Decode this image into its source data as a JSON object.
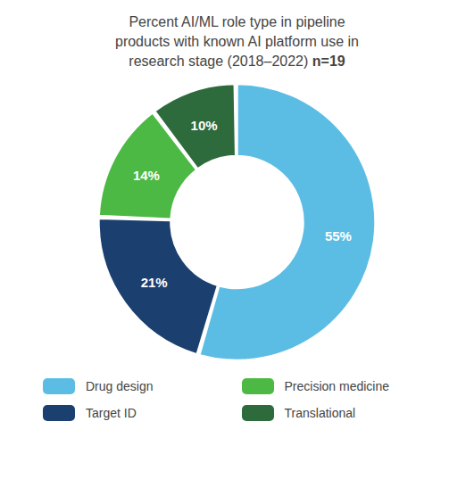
{
  "chart_data": {
    "type": "pie",
    "title": "Percent AI/ML role type in pipeline\nproducts with known AI platform use in\nresearch stage (2018–2022) n=19",
    "categories": [
      "Drug design",
      "Target ID",
      "Precision medicine",
      "Translational"
    ],
    "values": [
      55,
      21,
      14,
      10
    ],
    "value_labels": [
      "55%",
      "21%",
      "14%",
      "10%"
    ],
    "colors": [
      "#5BBDE4",
      "#1B3F6E",
      "#4CB944",
      "#2D6B3C"
    ],
    "data_labels": true,
    "legend": "bottom"
  }
}
